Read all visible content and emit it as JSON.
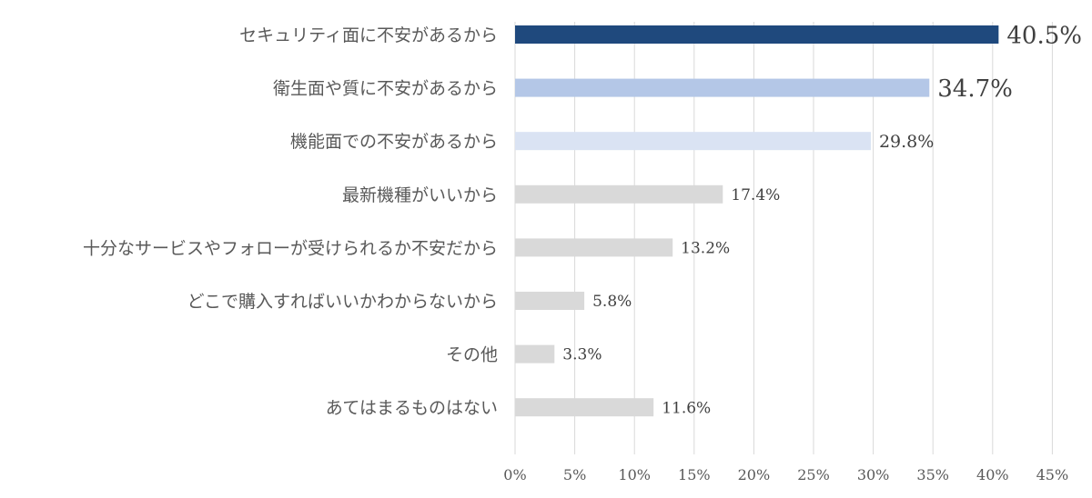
{
  "chart_data": {
    "type": "bar",
    "orientation": "horizontal",
    "categories": [
      "セキュリティ面に不安があるから",
      "衛生面や質に不安があるから",
      "機能面での不安があるから",
      "最新機種がいいから",
      "十分なサービスやフォローが受けられるか不安だから",
      "どこで購入すればいいかわからないから",
      "その他",
      "あてはまるものはない"
    ],
    "values": [
      40.5,
      34.7,
      29.8,
      17.4,
      13.2,
      5.8,
      3.3,
      11.6
    ],
    "value_labels": [
      "40.5%",
      "34.7%",
      "29.8%",
      "17.4%",
      "13.2%",
      "5.8%",
      "3.3%",
      "11.6%"
    ],
    "xlim": [
      0,
      45
    ],
    "x_ticks": [
      0,
      5,
      10,
      15,
      20,
      25,
      30,
      35,
      40,
      45
    ],
    "x_tick_labels": [
      "0%",
      "5%",
      "10%",
      "15%",
      "20%",
      "25%",
      "30%",
      "35%",
      "40%",
      "45%"
    ],
    "bar_colors": [
      "#1f497d",
      "#b4c7e7",
      "#dae3f3",
      "#d9d9d9",
      "#d9d9d9",
      "#d9d9d9",
      "#d9d9d9",
      "#d9d9d9"
    ],
    "grid": true
  }
}
